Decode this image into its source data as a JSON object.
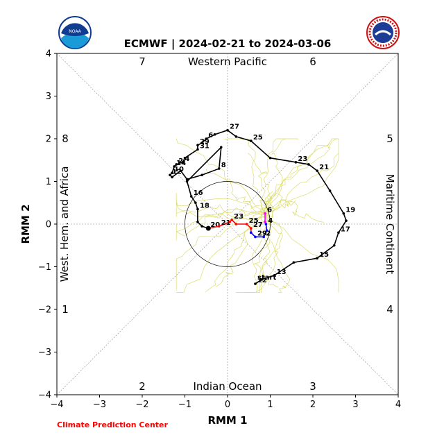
{
  "chart_data": {
    "type": "line",
    "title": "ECMWF | 2024-02-21 to 2024-03-06",
    "xlabel": "RMM 1",
    "ylabel": "RMM 2",
    "xlim": [
      -4,
      4
    ],
    "ylim": [
      -4,
      4
    ],
    "xticks": [
      "−4",
      "−3",
      "−2",
      "−1",
      "0",
      "1",
      "2",
      "3",
      "4"
    ],
    "yticks": [
      "−4",
      "−3",
      "−2",
      "−1",
      "0",
      "1",
      "2",
      "3",
      "4"
    ],
    "regions": {
      "top": "Western Pacific",
      "bottom": "Indian Ocean",
      "left": "West. Hem. and Africa",
      "right": "Maritime Continent"
    },
    "phase_numbers": [
      "1",
      "2",
      "3",
      "4",
      "5",
      "6",
      "7",
      "8"
    ],
    "credit": "Climate Prediction Center",
    "credit_color": "#ff0000",
    "unit_circle_radius": 1,
    "series": [
      {
        "color": "#000000",
        "points": [
          {
            "x": 0.65,
            "y": -1.4,
            "label": "12"
          },
          {
            "x": 0.8,
            "y": -1.3,
            "label": ""
          },
          {
            "x": 1.1,
            "y": -1.2,
            "label": "13"
          },
          {
            "x": 1.55,
            "y": -0.9,
            "label": ""
          },
          {
            "x": 2.1,
            "y": -0.8,
            "label": "15"
          },
          {
            "x": 2.5,
            "y": -0.5,
            "label": ""
          },
          {
            "x": 2.6,
            "y": -0.2,
            "label": "17"
          },
          {
            "x": 2.78,
            "y": 0.08,
            "label": ""
          },
          {
            "x": 2.72,
            "y": 0.25,
            "label": "19"
          },
          {
            "x": 2.4,
            "y": 0.78,
            "label": ""
          },
          {
            "x": 2.1,
            "y": 1.25,
            "label": "21"
          },
          {
            "x": 1.9,
            "y": 1.4,
            "label": ""
          },
          {
            "x": 1.6,
            "y": 1.45,
            "label": "23"
          },
          {
            "x": 1.0,
            "y": 1.55,
            "label": ""
          },
          {
            "x": 0.55,
            "y": 1.95,
            "label": "25"
          },
          {
            "x": 0.2,
            "y": 2.05,
            "label": ""
          },
          {
            "x": 0.0,
            "y": 2.2,
            "label": "27"
          },
          {
            "x": -0.3,
            "y": 2.1,
            "label": ""
          },
          {
            "x": -0.5,
            "y": 2.0,
            "label": "6"
          },
          {
            "x": -0.6,
            "y": 1.9,
            "label": ""
          },
          {
            "x": -0.7,
            "y": 1.85,
            "label": "29"
          },
          {
            "x": -0.7,
            "y": 1.75,
            "label": "31"
          },
          {
            "x": -1.0,
            "y": 1.55,
            "label": ""
          },
          {
            "x": -1.05,
            "y": 1.45,
            "label": "4"
          },
          {
            "x": -1.2,
            "y": 1.4,
            "label": "2"
          },
          {
            "x": -1.25,
            "y": 1.35,
            "label": "14"
          },
          {
            "x": -1.3,
            "y": 1.2,
            "label": "10"
          },
          {
            "x": -1.35,
            "y": 1.15,
            "label": "12"
          },
          {
            "x": -1.3,
            "y": 1.1,
            "label": ""
          },
          {
            "x": -1.1,
            "y": 1.25,
            "label": ""
          },
          {
            "x": -0.95,
            "y": 1.05,
            "label": ""
          },
          {
            "x": -0.6,
            "y": 1.15,
            "label": ""
          },
          {
            "x": -0.2,
            "y": 1.3,
            "label": "8"
          },
          {
            "x": -0.15,
            "y": 1.8,
            "label": ""
          },
          {
            "x": -0.95,
            "y": 1.0,
            "label": ""
          },
          {
            "x": -0.85,
            "y": 0.65,
            "label": "16"
          },
          {
            "x": -0.75,
            "y": 0.5,
            "label": ""
          },
          {
            "x": -0.7,
            "y": 0.35,
            "label": "18"
          },
          {
            "x": -0.7,
            "y": 0.05,
            "label": ""
          },
          {
            "x": -0.6,
            "y": -0.05,
            "label": ""
          },
          {
            "x": -0.45,
            "y": -0.1,
            "label": "20"
          }
        ]
      },
      {
        "color": "#ff0000",
        "points": [
          {
            "x": -0.45,
            "y": -0.1,
            "label": ""
          },
          {
            "x": -0.2,
            "y": -0.05,
            "label": "21"
          },
          {
            "x": 0.05,
            "y": 0.05,
            "label": ""
          },
          {
            "x": 0.1,
            "y": 0.1,
            "label": "23"
          },
          {
            "x": 0.2,
            "y": 0.0,
            "label": ""
          },
          {
            "x": 0.45,
            "y": 0.0,
            "label": "25"
          },
          {
            "x": 0.55,
            "y": -0.1,
            "label": "27"
          },
          {
            "x": 0.55,
            "y": -0.2,
            "label": ""
          }
        ]
      },
      {
        "color": "#0000ff",
        "points": [
          {
            "x": 0.55,
            "y": -0.2,
            "label": ""
          },
          {
            "x": 0.65,
            "y": -0.3,
            "label": "29"
          },
          {
            "x": 0.85,
            "y": -0.3,
            "label": "2"
          },
          {
            "x": 0.92,
            "y": -0.15,
            "label": ""
          },
          {
            "x": 0.9,
            "y": 0.0,
            "label": "4"
          },
          {
            "x": 0.88,
            "y": 0.05,
            "label": ""
          }
        ]
      },
      {
        "color": "#ff00ff",
        "points": [
          {
            "x": 0.88,
            "y": 0.05,
            "label": ""
          },
          {
            "x": 0.88,
            "y": 0.25,
            "label": "6"
          }
        ]
      }
    ],
    "start_label": {
      "x": 0.7,
      "y": -1.3,
      "text": "start"
    },
    "ensemble_color": "#d4d44a"
  }
}
